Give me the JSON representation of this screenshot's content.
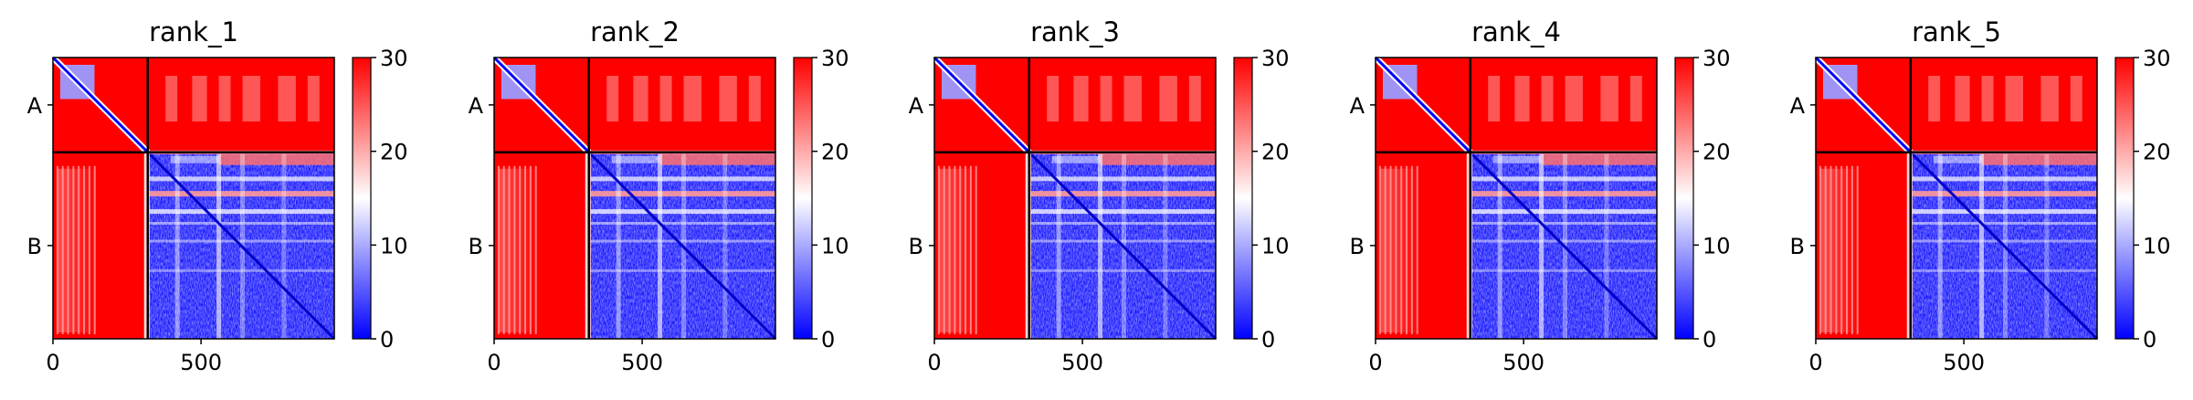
{
  "chart_data": [
    {
      "type": "heatmap",
      "title": "rank_1",
      "chain_labels": [
        "A",
        "B"
      ],
      "chain_boundary": 320,
      "xlim": [
        0,
        950
      ],
      "xticks": [
        0,
        500
      ],
      "colorbar": {
        "min": 0,
        "max": 30,
        "ticks": [
          0,
          10,
          20,
          30
        ],
        "colormap": "bwr"
      }
    },
    {
      "type": "heatmap",
      "title": "rank_2",
      "chain_labels": [
        "A",
        "B"
      ],
      "chain_boundary": 320,
      "xlim": [
        0,
        950
      ],
      "xticks": [
        0,
        500
      ],
      "colorbar": {
        "min": 0,
        "max": 30,
        "ticks": [
          0,
          10,
          20,
          30
        ],
        "colormap": "bwr"
      }
    },
    {
      "type": "heatmap",
      "title": "rank_3",
      "chain_labels": [
        "A",
        "B"
      ],
      "chain_boundary": 320,
      "xlim": [
        0,
        950
      ],
      "xticks": [
        0,
        500
      ],
      "colorbar": {
        "min": 0,
        "max": 30,
        "ticks": [
          0,
          10,
          20,
          30
        ],
        "colormap": "bwr"
      }
    },
    {
      "type": "heatmap",
      "title": "rank_4",
      "chain_labels": [
        "A",
        "B"
      ],
      "chain_boundary": 320,
      "xlim": [
        0,
        950
      ],
      "xticks": [
        0,
        500
      ],
      "colorbar": {
        "min": 0,
        "max": 30,
        "ticks": [
          0,
          10,
          20,
          30
        ],
        "colormap": "bwr"
      }
    },
    {
      "type": "heatmap",
      "title": "rank_5",
      "chain_labels": [
        "A",
        "B"
      ],
      "chain_boundary": 320,
      "xlim": [
        0,
        950
      ],
      "xticks": [
        0,
        500
      ],
      "colorbar": {
        "min": 0,
        "max": 30,
        "ticks": [
          0,
          10,
          20,
          30
        ],
        "colormap": "bwr"
      }
    }
  ]
}
